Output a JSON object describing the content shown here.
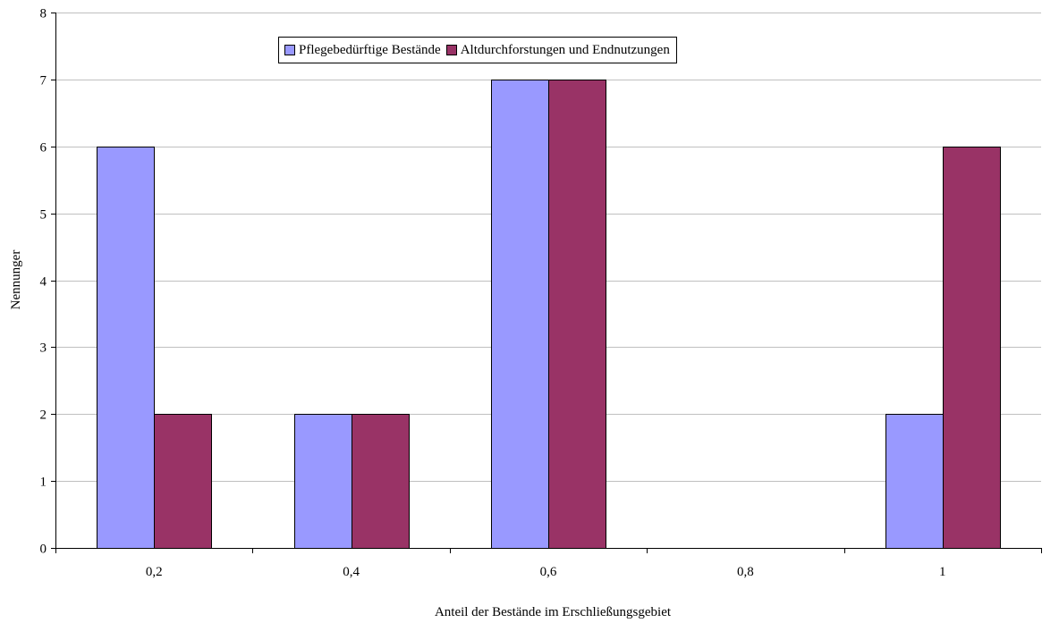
{
  "chart_data": {
    "type": "bar",
    "title": "",
    "xlabel": "Anteil der Bestände im Erschließungsgebiet",
    "ylabel": "Nennunger",
    "categories": [
      "0,2",
      "0,4",
      "0,6",
      "0,8",
      "1"
    ],
    "series": [
      {
        "name": "Pflegebedürftige Bestände",
        "color": "#9999ff",
        "values": [
          6,
          2,
          7,
          0,
          2
        ]
      },
      {
        "name": "Altdurchforstungen und Endnutzungen",
        "color": "#993366",
        "values": [
          2,
          2,
          7,
          0,
          6
        ]
      }
    ],
    "ylim": [
      0,
      8
    ],
    "yticks": [
      "0",
      "1",
      "2",
      "3",
      "4",
      "5",
      "6",
      "7",
      "8"
    ],
    "grid": true,
    "legend_position": "top"
  }
}
